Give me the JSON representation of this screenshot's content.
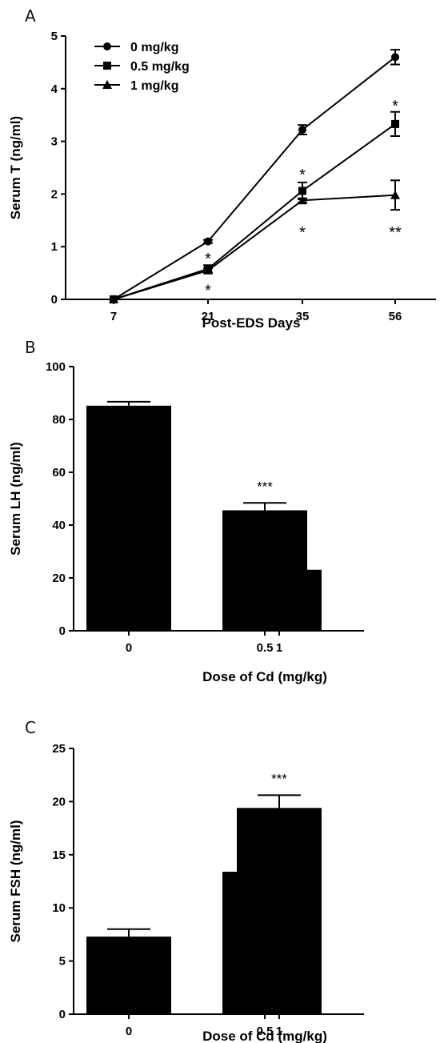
{
  "chart_data": [
    {
      "panel": "A",
      "type": "line",
      "xlabel": "Post-EDS Days",
      "ylabel": "Serum T (ng/ml)",
      "categories": [
        "7",
        "21",
        "35",
        "56"
      ],
      "ylim": [
        0,
        5
      ],
      "yticks": [
        "0",
        "1",
        "2",
        "3",
        "4",
        "5"
      ],
      "legend_position": "top-left",
      "series": [
        {
          "name": "0 mg/kg",
          "marker": "circle",
          "values": [
            0,
            1.1,
            3.22,
            4.6
          ],
          "errors": [
            0,
            0.03,
            0.09,
            0.14
          ]
        },
        {
          "name": "0.5 mg/kg",
          "marker": "square",
          "values": [
            0,
            0.58,
            2.06,
            3.33
          ],
          "errors": [
            0,
            0.07,
            0.16,
            0.23
          ]
        },
        {
          "name": "1 mg/kg",
          "marker": "triangle",
          "values": [
            0,
            0.55,
            1.88,
            1.98
          ],
          "errors": [
            0,
            0.04,
            0.04,
            0.28
          ]
        }
      ],
      "annotations": [
        {
          "text": "*",
          "category": "21",
          "y": 0.82
        },
        {
          "text": "*",
          "category": "21",
          "y": 0.22
        },
        {
          "text": "*",
          "category": "35",
          "y": 2.42
        },
        {
          "text": "*",
          "category": "35",
          "y": 1.32
        },
        {
          "text": "*",
          "category": "56",
          "y": 3.72
        },
        {
          "text": "**",
          "category": "56",
          "y": 1.32
        }
      ]
    },
    {
      "panel": "B",
      "type": "bar",
      "xlabel": "Dose of Cd  (mg/kg)",
      "ylabel": "Serum LH (ng/ml)",
      "categories": [
        "0",
        "0.5",
        "1"
      ],
      "values": [
        85.2,
        45.6,
        23.1
      ],
      "errors": [
        1.5,
        2.8,
        1.5
      ],
      "ylim": [
        0,
        100
      ],
      "yticks": [
        "0",
        "20",
        "40",
        "60",
        "80",
        "100"
      ],
      "annotations": [
        "",
        "***",
        "***"
      ]
    },
    {
      "panel": "C",
      "type": "bar",
      "xlabel": "Dose of Cd  (mg/kg)",
      "ylabel": "Serum FSH (ng/ml)",
      "categories": [
        "0",
        "0.5",
        "1"
      ],
      "values": [
        7.3,
        13.4,
        19.4
      ],
      "errors": [
        0.7,
        0.8,
        1.2
      ],
      "ylim": [
        0,
        25
      ],
      "yticks": [
        "0",
        "5",
        "10",
        "15",
        "20",
        "25"
      ],
      "annotations": [
        "",
        "***",
        "***"
      ]
    }
  ]
}
